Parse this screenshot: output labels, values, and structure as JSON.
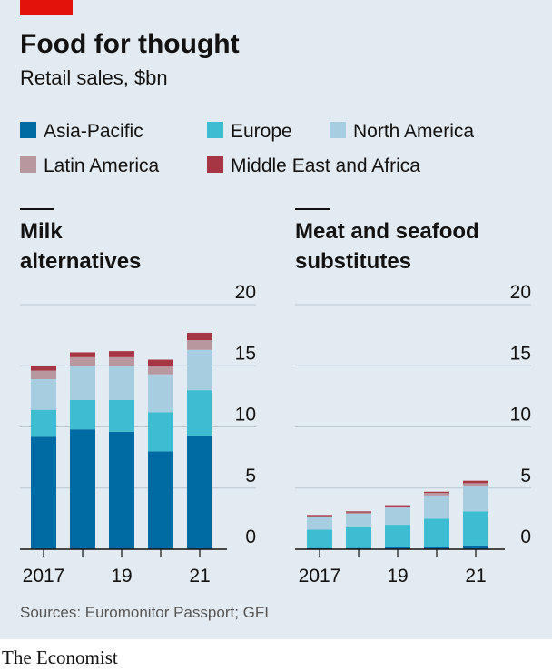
{
  "title": "Food for thought",
  "subtitle": "Retail sales, $bn",
  "source": "Sources: Euromonitor Passport; GFI",
  "brand": "The Economist",
  "colors": {
    "background": "#e3ebf2",
    "accent_red": "#e3120b",
    "gridline": "#b7c6cf",
    "axis": "#121212",
    "asia_pacific": "#006ba2",
    "europe": "#3ebcd2",
    "north_america": "#a7cde0",
    "latin_america": "#b8979f",
    "middle_east_africa": "#a63644"
  },
  "chart_data": [
    {
      "type": "bar",
      "stacked": true,
      "title": "Milk alternatives",
      "title_lines": [
        "Milk",
        "alternatives"
      ],
      "x": [
        2017,
        2018,
        2019,
        2020,
        2021
      ],
      "x_tick_labels": [
        "2017",
        "",
        "19",
        "",
        "21"
      ],
      "ylim": [
        0,
        20
      ],
      "y_ticks": [
        "0",
        "5",
        "10",
        "15",
        "20"
      ],
      "y_axis_side": "right",
      "grid": true,
      "series": [
        {
          "name": "Asia-Pacific",
          "color": "#006ba2",
          "values": [
            9.2,
            9.8,
            9.6,
            8.0,
            9.3
          ]
        },
        {
          "name": "Europe",
          "color": "#3ebcd2",
          "values": [
            2.2,
            2.4,
            2.6,
            3.2,
            3.7
          ]
        },
        {
          "name": "North America",
          "color": "#a7cde0",
          "values": [
            2.5,
            2.8,
            2.8,
            3.1,
            3.3
          ]
        },
        {
          "name": "Latin America",
          "color": "#b8979f",
          "values": [
            0.7,
            0.7,
            0.7,
            0.7,
            0.8
          ]
        },
        {
          "name": "Middle East and Africa",
          "color": "#a63644",
          "values": [
            0.4,
            0.4,
            0.5,
            0.5,
            0.6
          ]
        }
      ]
    },
    {
      "type": "bar",
      "stacked": true,
      "title": "Meat and seafood substitutes",
      "title_lines": [
        "Meat and seafood",
        "substitutes"
      ],
      "x": [
        2017,
        2018,
        2019,
        2020,
        2021
      ],
      "x_tick_labels": [
        "2017",
        "",
        "19",
        "",
        "21"
      ],
      "ylim": [
        0,
        20
      ],
      "y_ticks": [
        "0",
        "5",
        "10",
        "15",
        "20"
      ],
      "y_axis_side": "right",
      "grid": true,
      "series": [
        {
          "name": "Asia-Pacific",
          "color": "#006ba2",
          "values": [
            0.1,
            0.1,
            0.2,
            0.2,
            0.3
          ]
        },
        {
          "name": "Europe",
          "color": "#3ebcd2",
          "values": [
            1.5,
            1.7,
            1.8,
            2.3,
            2.8
          ]
        },
        {
          "name": "North America",
          "color": "#a7cde0",
          "values": [
            1.0,
            1.1,
            1.4,
            1.9,
            2.1
          ]
        },
        {
          "name": "Latin America",
          "color": "#b8979f",
          "values": [
            0.1,
            0.1,
            0.1,
            0.2,
            0.2
          ]
        },
        {
          "name": "Middle East and Africa",
          "color": "#a63644",
          "values": [
            0.1,
            0.1,
            0.1,
            0.1,
            0.2
          ]
        }
      ]
    }
  ]
}
